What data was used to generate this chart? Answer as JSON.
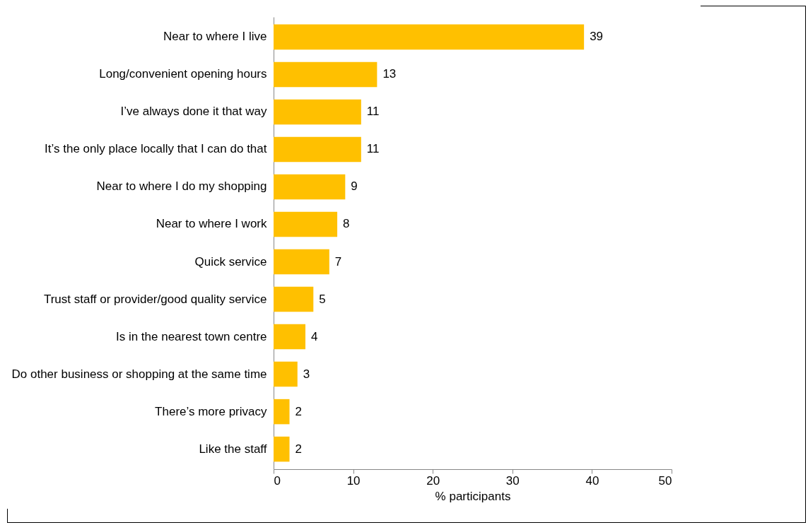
{
  "chart_data": {
    "type": "bar",
    "orientation": "horizontal",
    "xlabel": "% participants",
    "categories": [
      "Near to where I live",
      "Long/convenient opening hours",
      "I’ve always done it that way",
      "It’s the only place locally that I can do that",
      "Near to where I do my shopping",
      "Near to where I work",
      "Quick service",
      "Trust staff or provider/good quality service",
      "Is in the nearest town centre",
      "Do other business or shopping at the same time",
      "There’s more privacy",
      "Like the staff"
    ],
    "values": [
      39,
      13,
      11,
      11,
      9,
      8,
      7,
      5,
      4,
      3,
      2,
      2
    ],
    "color": "#ffc000",
    "xlim": [
      0,
      50
    ],
    "xticks": [
      0,
      10,
      20,
      30,
      40,
      50
    ],
    "grid": false,
    "data_labels": true
  }
}
